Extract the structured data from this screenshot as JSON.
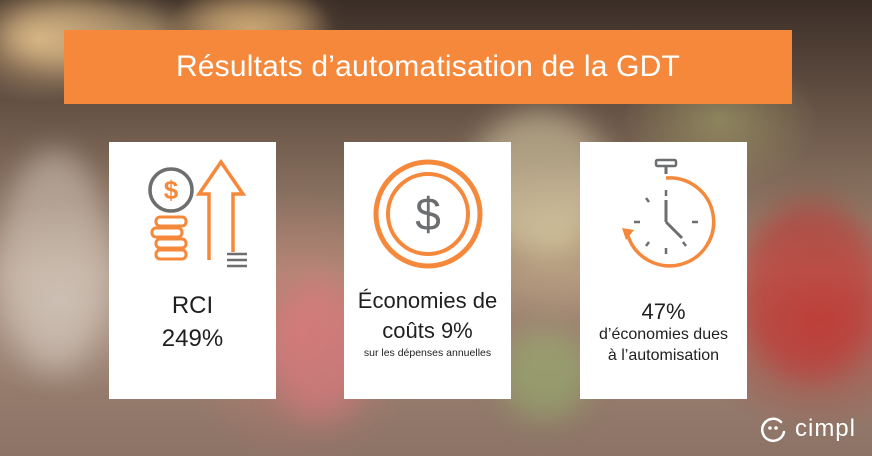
{
  "banner": {
    "title": "Résultats d’automatisation de la GDT"
  },
  "cards": [
    {
      "icon": "coins-arrow-up-icon",
      "line1": "RCI",
      "line2": "249%"
    },
    {
      "icon": "dollar-coin-icon",
      "line1": "Économies de",
      "line2": "coûts 9%",
      "line3": "sur les dépenses annuelles"
    },
    {
      "icon": "stopwatch-icon",
      "line1": "47%",
      "line2": "d’économies dues",
      "line3": "à l’automisation"
    }
  ],
  "logo": {
    "text": "cimpl"
  },
  "colors": {
    "accent": "#f5883a",
    "icon_gray": "#6d6e70",
    "card_bg": "#ffffff"
  }
}
